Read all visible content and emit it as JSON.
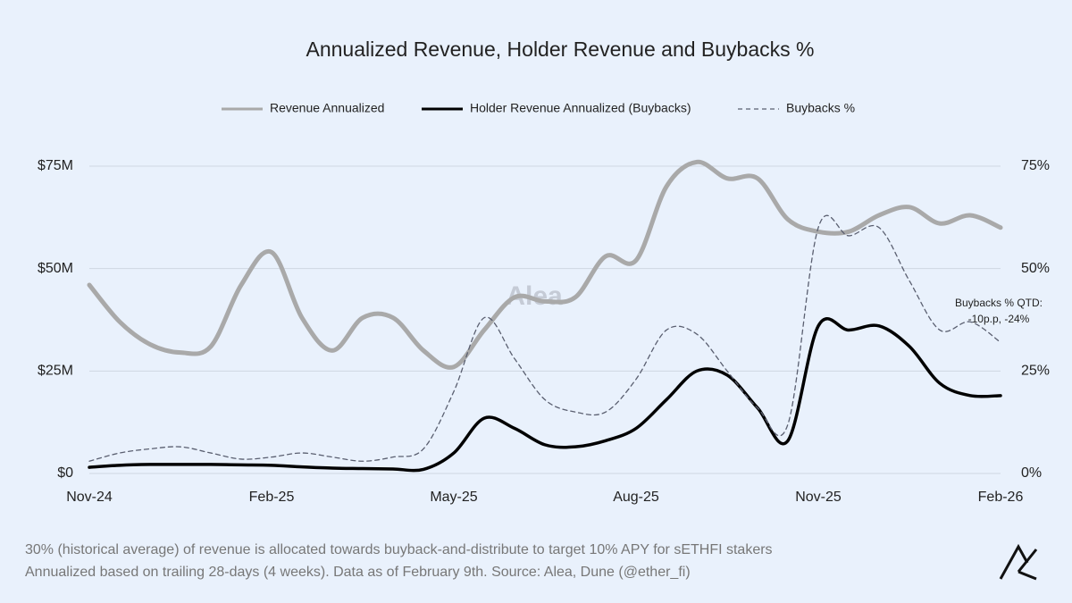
{
  "chart_data": {
    "type": "line",
    "title": "Annualized Revenue, Holder Revenue and Buybacks %",
    "categories": [
      "Nov-24",
      null,
      null,
      null,
      null,
      null,
      "Feb-25",
      null,
      null,
      null,
      null,
      null,
      "May-25",
      null,
      null,
      null,
      null,
      null,
      "Aug-25",
      null,
      null,
      null,
      null,
      null,
      "Nov-25",
      null,
      null,
      null,
      null,
      null,
      "Feb-26"
    ],
    "series": [
      {
        "name": "Revenue Annualized",
        "color": "#a9a9a9",
        "values": [
          46,
          37,
          31.5,
          29.5,
          31,
          46,
          54,
          38,
          30,
          38,
          38,
          30,
          26,
          35,
          43,
          42,
          43,
          53,
          52,
          70,
          76,
          72,
          72,
          62,
          59,
          59,
          63,
          65,
          61,
          63,
          60
        ]
      },
      {
        "name": "Holder Revenue Annualized (Buybacks)",
        "color": "#000000",
        "values": [
          1.5,
          2,
          2.2,
          2.2,
          2.2,
          2.1,
          2,
          1.6,
          1.3,
          1.2,
          1.1,
          1,
          5,
          13.5,
          11,
          7,
          6.5,
          8,
          11,
          18,
          25,
          24,
          16,
          8,
          36,
          35,
          36,
          31,
          22,
          19,
          19
        ]
      },
      {
        "name": "Buybacks %",
        "color": "#5a5f70",
        "dashed": true,
        "axis": "y2",
        "values": [
          3,
          5,
          6,
          6.5,
          5,
          3.5,
          4,
          5,
          4,
          3,
          4,
          6,
          20,
          38,
          28,
          18,
          15,
          15,
          23,
          35,
          34,
          25,
          16,
          12,
          60,
          58,
          60,
          47,
          35,
          37,
          32
        ]
      }
    ],
    "ylim": [
      0,
      80
    ],
    "yticks": [
      {
        "value": 0,
        "label": "$0"
      },
      {
        "value": 25,
        "label": "$25M"
      },
      {
        "value": 50,
        "label": "$50M"
      },
      {
        "value": 75,
        "label": "$75M"
      }
    ],
    "y2lim": [
      0,
      80
    ],
    "y2ticks": [
      {
        "value": 0,
        "label": "0%"
      },
      {
        "value": 25,
        "label": "25%"
      },
      {
        "value": 50,
        "label": "50%"
      },
      {
        "value": 75,
        "label": "75%"
      }
    ],
    "grid": true,
    "legend": "top",
    "annotations": [
      "Buybacks % QTD:",
      "-10p.p, -24%"
    ],
    "watermark": "Alea",
    "notes": [
      "30% (historical average) of revenue is allocated towards buyback-and-distribute to target 10% APY for sETHFI stakers",
      "Annualized based on trailing 28-days (4 weeks). Data as of February 9th. Source: Alea, Dune (@ether_fi)"
    ]
  }
}
